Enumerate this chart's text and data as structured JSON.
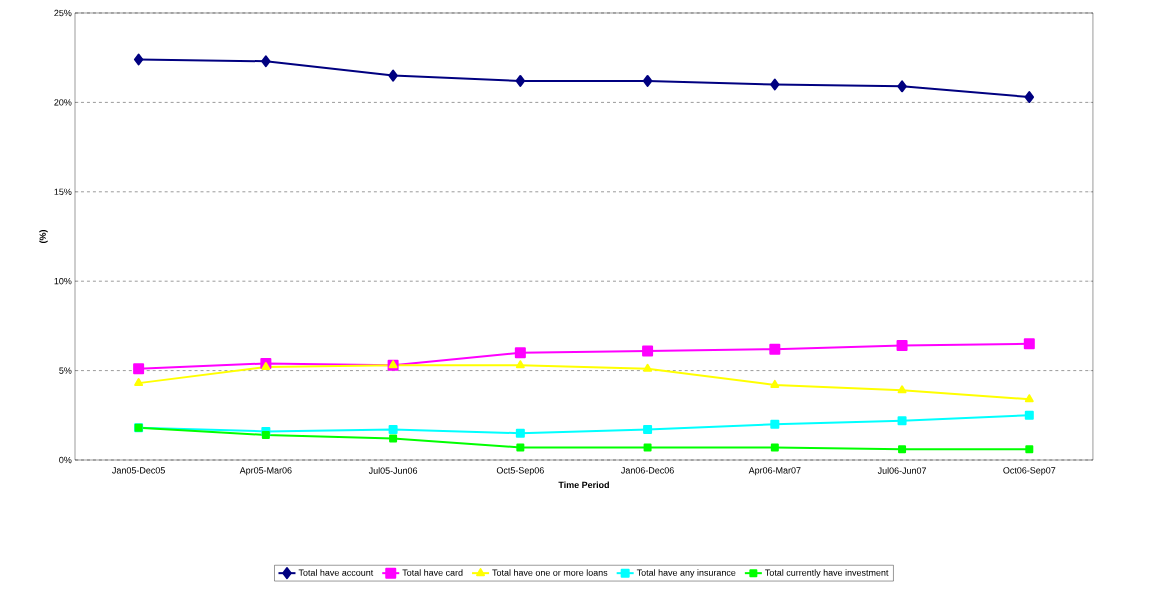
{
  "chart_data": {
    "type": "line",
    "xlabel": "Time Period",
    "ylabel": "(%)",
    "categories": [
      "Jan05-Dec05",
      "Apr05-Mar06",
      "Jul05-Jun06",
      "Oct5-Sep06",
      "Jan06-Dec06",
      "Apr06-Mar07",
      "Jul06-Jun07",
      "Oct06-Sep07"
    ],
    "series": [
      {
        "name": "Total have account",
        "color": "#000080",
        "marker": "diamond",
        "values": [
          22.4,
          22.3,
          21.5,
          21.2,
          21.2,
          21.0,
          20.9,
          20.3
        ]
      },
      {
        "name": "Total have card",
        "color": "#ff00ff",
        "marker": "square",
        "values": [
          5.1,
          5.4,
          5.3,
          6.0,
          6.1,
          6.2,
          6.4,
          6.5
        ]
      },
      {
        "name": "Total have one or more loans",
        "color": "#ffff00",
        "marker": "triangle",
        "values": [
          4.3,
          5.2,
          5.3,
          5.3,
          5.1,
          4.2,
          3.9,
          3.4
        ]
      },
      {
        "name": "Total have any insurance",
        "color": "#00ffff",
        "marker": "square",
        "values": [
          1.8,
          1.6,
          1.7,
          1.5,
          1.7,
          2.0,
          2.2,
          2.5
        ]
      },
      {
        "name": "Total currently have investment",
        "color": "#00ff00",
        "marker": "square",
        "values": [
          1.8,
          1.4,
          1.2,
          0.7,
          0.7,
          0.7,
          0.6,
          0.6
        ]
      }
    ],
    "ylim": [
      0,
      25
    ],
    "yticks": [
      {
        "value": 0,
        "label": "0%"
      },
      {
        "value": 5,
        "label": "5%"
      },
      {
        "value": 10,
        "label": "10%"
      },
      {
        "value": 15,
        "label": "15%"
      },
      {
        "value": 20,
        "label": "20%"
      },
      {
        "value": 25,
        "label": "25%"
      }
    ],
    "grid": "y",
    "legend": "bottom",
    "line_style": "solid"
  }
}
